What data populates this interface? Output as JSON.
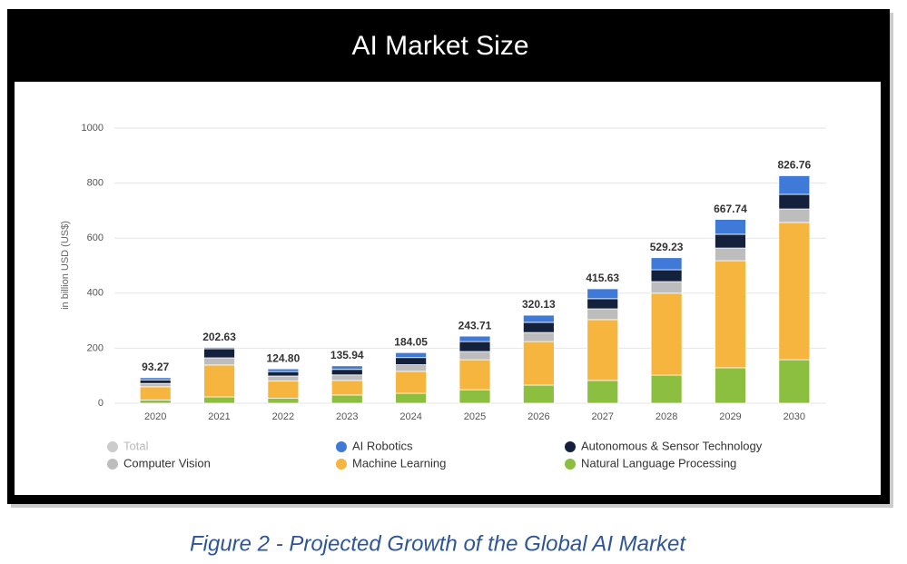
{
  "chart_data": {
    "type": "stacked-bar",
    "title": "AI Market Size",
    "y_axis_label": "in billion USD (US$)",
    "categories": [
      "2020",
      "2021",
      "2022",
      "2023",
      "2024",
      "2025",
      "2026",
      "2027",
      "2028",
      "2029",
      "2030"
    ],
    "ylim": [
      0,
      1000
    ],
    "yticks": [
      0,
      200,
      400,
      600,
      800,
      1000
    ],
    "grid": true,
    "series": [
      {
        "name": "Natural Language Processing",
        "color": "#8cbf3f",
        "values": [
          12,
          23,
          18,
          30,
          36,
          49,
          66,
          83,
          102,
          129,
          158
        ]
      },
      {
        "name": "Machine Learning",
        "color": "#f5b53f",
        "values": [
          48,
          116,
          63,
          53,
          80,
          109,
          158,
          221,
          298,
          389,
          499
        ]
      },
      {
        "name": "Computer Vision",
        "color": "#bdbdbd",
        "values": [
          12,
          26,
          18,
          20,
          24,
          30,
          33,
          39,
          42,
          46,
          49
        ]
      },
      {
        "name": "Autonomous & Sensor Technology",
        "color": "#13213c",
        "values": [
          13,
          33,
          16,
          20,
          26,
          36,
          37,
          37,
          43,
          50,
          53
        ]
      },
      {
        "name": "AI Robotics",
        "color": "#3f7ad9",
        "values": [
          8,
          5,
          10,
          13,
          18,
          20,
          26,
          36,
          44,
          54,
          68
        ]
      }
    ],
    "total": {
      "name": "Total",
      "legend_color": "#cccccc",
      "values": [
        93.27,
        202.63,
        124.8,
        135.94,
        184.05,
        243.71,
        320.13,
        415.63,
        529.23,
        667.74,
        826.76
      ],
      "value_labels": [
        "93.27",
        "202.63",
        "124.80",
        "135.94",
        "184.05",
        "243.71",
        "320.13",
        "415.63",
        "529.23",
        "667.74",
        "826.76"
      ]
    }
  },
  "caption": "Figure 2 - Projected Growth of the Global AI Market"
}
